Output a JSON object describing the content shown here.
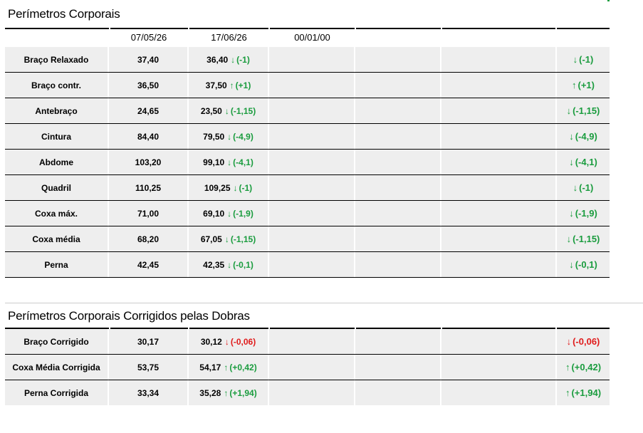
{
  "section1": {
    "title": "Perímetros Corporais",
    "dates": [
      "07/05/26",
      "17/06/26",
      "00/01/00"
    ],
    "rows": [
      {
        "label": "Braço Relaxado",
        "v1": "37,40",
        "v2": "36,40",
        "d": "(-1)",
        "dir": "down",
        "trend": "(-1)"
      },
      {
        "label": "Braço contr.",
        "v1": "36,50",
        "v2": "37,50",
        "d": "(+1)",
        "dir": "up",
        "trend": "(+1)"
      },
      {
        "label": "Antebraço",
        "v1": "24,65",
        "v2": "23,50",
        "d": "(-1,15)",
        "dir": "down",
        "trend": "(-1,15)"
      },
      {
        "label": "Cintura",
        "v1": "84,40",
        "v2": "79,50",
        "d": "(-4,9)",
        "dir": "down",
        "trend": "(-4,9)"
      },
      {
        "label": "Abdome",
        "v1": "103,20",
        "v2": "99,10",
        "d": "(-4,1)",
        "dir": "down",
        "trend": "(-4,1)"
      },
      {
        "label": "Quadril",
        "v1": "110,25",
        "v2": "109,25",
        "d": "(-1)",
        "dir": "down",
        "trend": "(-1)"
      },
      {
        "label": "Coxa máx.",
        "v1": "71,00",
        "v2": "69,10",
        "d": "(-1,9)",
        "dir": "down",
        "trend": "(-1,9)"
      },
      {
        "label": "Coxa média",
        "v1": "68,20",
        "v2": "67,05",
        "d": "(-1,15)",
        "dir": "down",
        "trend": "(-1,15)"
      },
      {
        "label": "Perna",
        "v1": "42,45",
        "v2": "42,35",
        "d": "(-0,1)",
        "dir": "down",
        "trend": "(-0,1)"
      }
    ]
  },
  "section2": {
    "title": "Perímetros Corporais Corrigidos pelas Dobras",
    "rows": [
      {
        "label": "Braço Corrigido",
        "v1": "30,17",
        "v2": "30,12",
        "d": "(-0,06)",
        "dir": "bad",
        "trend": "(-0,06)"
      },
      {
        "label": "Coxa Média Corrigida",
        "v1": "53,75",
        "v2": "54,17",
        "d": "(+0,42)",
        "dir": "up",
        "trend": "(+0,42)"
      },
      {
        "label": "Perna Corrigida",
        "v1": "33,34",
        "v2": "35,28",
        "d": "(+1,94)",
        "dir": "up",
        "trend": "(+1,94)"
      }
    ]
  },
  "arrows": {
    "up": "↑",
    "down": "↓",
    "bad": "↓"
  },
  "colors": {
    "positive": "#1a9c3e",
    "negative": "#e01b1b",
    "row_bg": "#eeeeee"
  }
}
